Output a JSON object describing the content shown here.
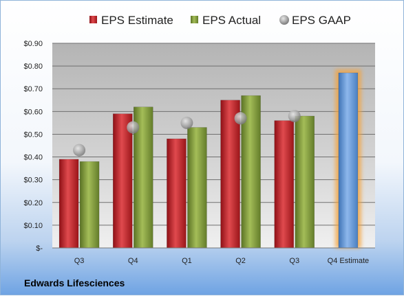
{
  "chart_data": {
    "type": "bar",
    "categories": [
      "Q3",
      "Q4",
      "Q1",
      "Q2",
      "Q3",
      "Q4 Estimate"
    ],
    "series": [
      {
        "name": "EPS Estimate",
        "color": "#c0262c",
        "values": [
          0.39,
          0.59,
          0.48,
          0.65,
          0.56,
          null
        ]
      },
      {
        "name": "EPS Actual",
        "color": "#7f9a37",
        "values": [
          0.38,
          0.62,
          0.53,
          0.67,
          0.58,
          null
        ]
      },
      {
        "name": "EPS GAAP",
        "color": "#a8a8a8",
        "kind": "scatter",
        "values": [
          0.43,
          0.53,
          0.55,
          0.57,
          0.58,
          null
        ]
      },
      {
        "name": "",
        "color": "#5f93d3",
        "highlight": "#f5a33a",
        "values": [
          null,
          null,
          null,
          null,
          null,
          0.77
        ]
      }
    ],
    "y_ticks": [
      "$-",
      "$0.10",
      "$0.20",
      "$0.30",
      "$0.40",
      "$0.50",
      "$0.60",
      "$0.70",
      "$0.80",
      "$0.90"
    ],
    "ylim": [
      0,
      0.9
    ],
    "grid": true,
    "legend_position": "top",
    "title": "",
    "xlabel": "",
    "ylabel": "",
    "company": "Edwards Lifesciences"
  }
}
